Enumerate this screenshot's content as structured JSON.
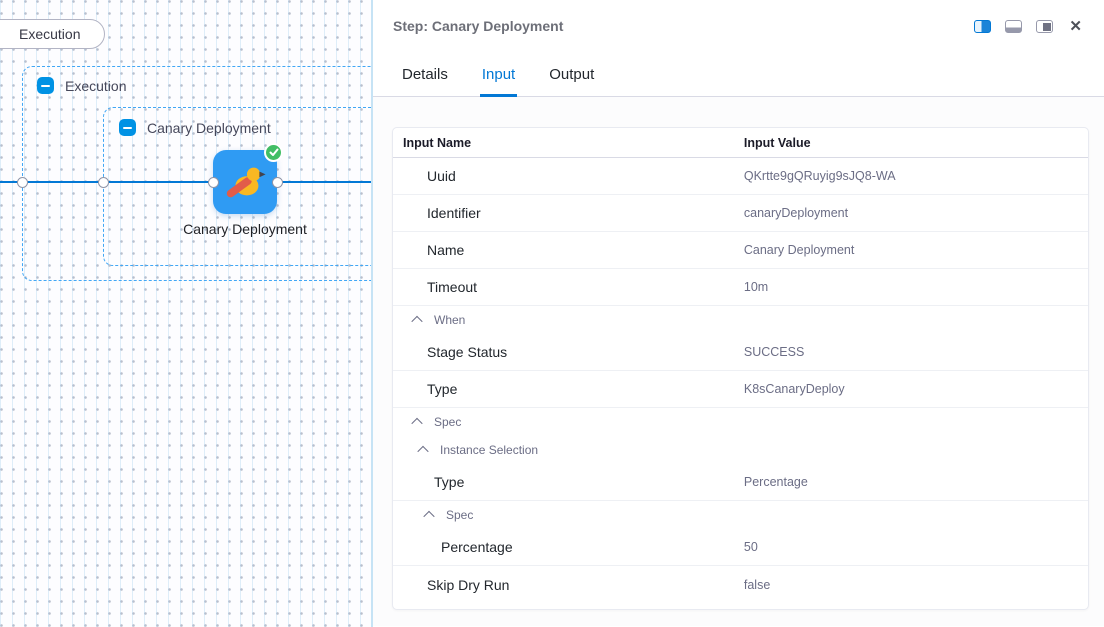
{
  "canvas": {
    "stage_pill_label": "Execution",
    "outer_group_label": "Execution",
    "inner_group_label": "Canary Deployment",
    "node_label": "Canary Deployment",
    "node_status": "success"
  },
  "panel": {
    "title": "Step: Canary Deployment",
    "tabs": [
      {
        "label": "Details"
      },
      {
        "label": "Input"
      },
      {
        "label": "Output"
      }
    ],
    "active_tab": "Input",
    "close_label": "✕",
    "table": {
      "name_header": "Input Name",
      "value_header": "Input Value",
      "rows": [
        {
          "kind": "row",
          "indent": 0,
          "name": "Uuid",
          "value": "QKrtte9gQRuyig9sJQ8-WA"
        },
        {
          "kind": "row",
          "indent": 0,
          "name": "Identifier",
          "value": "canaryDeployment"
        },
        {
          "kind": "row",
          "indent": 0,
          "name": "Name",
          "value": "Canary Deployment"
        },
        {
          "kind": "row",
          "indent": 0,
          "name": "Timeout",
          "value": "10m"
        },
        {
          "kind": "group",
          "indent": 0,
          "name": "When"
        },
        {
          "kind": "row",
          "indent": 0,
          "name": "Stage Status",
          "value": "SUCCESS"
        },
        {
          "kind": "row",
          "indent": 0,
          "name": "Type",
          "value": "K8sCanaryDeploy"
        },
        {
          "kind": "group",
          "indent": 0,
          "name": "Spec"
        },
        {
          "kind": "group",
          "indent": 1,
          "name": "Instance Selection"
        },
        {
          "kind": "row",
          "indent": 1,
          "name": "Type",
          "value": "Percentage"
        },
        {
          "kind": "group",
          "indent": 2,
          "name": "Spec"
        },
        {
          "kind": "row",
          "indent": 2,
          "name": "Percentage",
          "value": "50"
        },
        {
          "kind": "row",
          "indent": 0,
          "name": "Skip Dry Run",
          "value": "false"
        }
      ]
    }
  },
  "colors": {
    "primary_blue": "#0278d5",
    "node_blue": "#2f9bf3",
    "success_green": "#42be65",
    "dashed_blue": "#41a7f5",
    "minus_blue": "#0092e4"
  }
}
